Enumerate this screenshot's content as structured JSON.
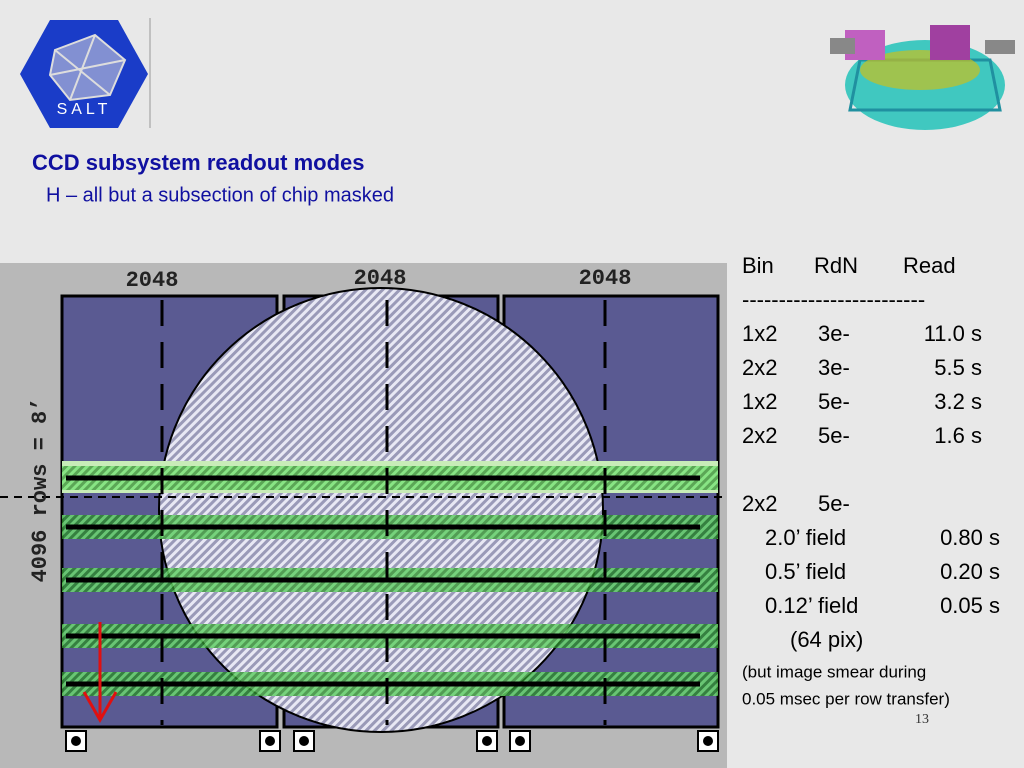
{
  "header": {
    "logo_text": "SALT",
    "title": "CCD subsystem readout modes",
    "subtitle": "H – all but a subsection of chip masked"
  },
  "diagram": {
    "chip_labels": [
      "2048",
      "2048",
      "2048"
    ],
    "side_label": "4096 rows = 8’"
  },
  "table": {
    "header": [
      "Bin",
      "RdN",
      "Read"
    ],
    "separator": "-------------------------",
    "rows": [
      [
        "1x2",
        "3e-",
        "11.0 s"
      ],
      [
        "2x2",
        "3e-",
        "5.5 s"
      ],
      [
        "1x2",
        "5e-",
        "3.2 s"
      ],
      [
        "2x2",
        "5e-",
        "1.6 s"
      ]
    ],
    "group": [
      "2x2",
      "5e-"
    ],
    "sub_rows": [
      [
        "2.0’ field",
        "0.80 s"
      ],
      [
        "0.5’ field",
        "0.20 s"
      ],
      [
        "0.12’ field",
        "0.05 s"
      ]
    ],
    "sub_note": "(64 pix)",
    "notes": [
      "(but image smear during",
      "0.05 msec per row transfer)"
    ]
  },
  "page_number": "13"
}
